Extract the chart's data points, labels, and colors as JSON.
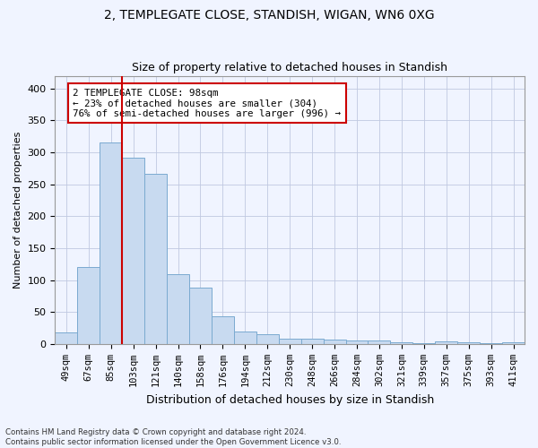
{
  "title1": "2, TEMPLEGATE CLOSE, STANDISH, WIGAN, WN6 0XG",
  "title2": "Size of property relative to detached houses in Standish",
  "xlabel": "Distribution of detached houses by size in Standish",
  "ylabel": "Number of detached properties",
  "categories": [
    "49sqm",
    "67sqm",
    "85sqm",
    "103sqm",
    "121sqm",
    "140sqm",
    "158sqm",
    "176sqm",
    "194sqm",
    "212sqm",
    "230sqm",
    "248sqm",
    "266sqm",
    "284sqm",
    "302sqm",
    "321sqm",
    "339sqm",
    "357sqm",
    "375sqm",
    "393sqm",
    "411sqm"
  ],
  "values": [
    18,
    120,
    315,
    292,
    266,
    109,
    88,
    44,
    20,
    15,
    9,
    8,
    7,
    6,
    5,
    3,
    2,
    4,
    3,
    1,
    3
  ],
  "bar_color": "#c8daf0",
  "bar_edge_color": "#7aaad0",
  "vline_color": "#cc0000",
  "annotation_text": "2 TEMPLEGATE CLOSE: 98sqm\n← 23% of detached houses are smaller (304)\n76% of semi-detached houses are larger (996) →",
  "annotation_box_color": "#ffffff",
  "annotation_box_edge": "#cc0000",
  "footer": "Contains HM Land Registry data © Crown copyright and database right 2024.\nContains public sector information licensed under the Open Government Licence v3.0.",
  "ylim": [
    0,
    420
  ],
  "yticks": [
    0,
    50,
    100,
    150,
    200,
    250,
    300,
    350,
    400
  ],
  "background_color": "#f0f4ff",
  "grid_color": "#c0c8e0"
}
